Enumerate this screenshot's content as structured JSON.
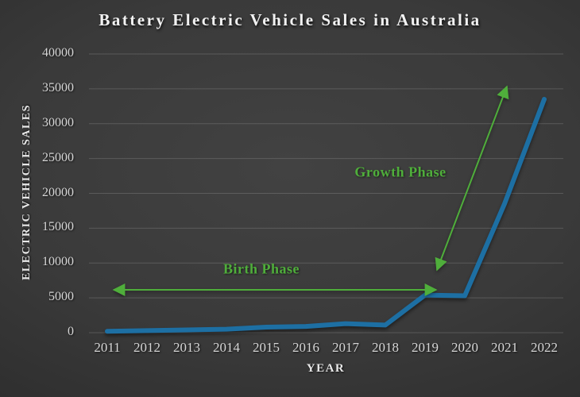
{
  "title": "Battery Electric Vehicle Sales in Australia",
  "colors": {
    "line_blue": "#1d6fa3",
    "annotation_green": "#4fae3b",
    "background_dark": "#2f2f2f",
    "text_light": "#d6d6d6"
  },
  "chart_data": {
    "type": "line",
    "title": "Battery Electric Vehicle Sales in Australia",
    "xlabel": "YEAR",
    "ylabel": "ELECTRIC VEHICLE SALES",
    "categories": [
      "2011",
      "2012",
      "2013",
      "2014",
      "2015",
      "2016",
      "2017",
      "2018",
      "2019",
      "2020",
      "2021",
      "2022"
    ],
    "series": [
      {
        "name": "Battery electric vehicle sales",
        "values": [
          200,
          300,
          400,
          500,
          800,
          900,
          1300,
          1100,
          5400,
          5300,
          18500,
          33500
        ]
      }
    ],
    "ylim": [
      0,
      40000
    ],
    "ytick_step": 5000,
    "yticks": [
      0,
      5000,
      10000,
      15000,
      20000,
      25000,
      30000,
      35000,
      40000
    ],
    "grid": "horizontal",
    "legend": "none",
    "annotations": {
      "birth_phase": {
        "label": "Birth Phase",
        "type": "double-headed-horizontal-arrow",
        "x_from": "2011",
        "x_to": "2019",
        "y_value": 6200
      },
      "growth_phase": {
        "label": "Growth Phase",
        "type": "double-headed-diagonal-arrow",
        "from_x": "2019",
        "from_y_value": 8500,
        "to_x": "2021",
        "to_y_value": 36000
      }
    }
  }
}
